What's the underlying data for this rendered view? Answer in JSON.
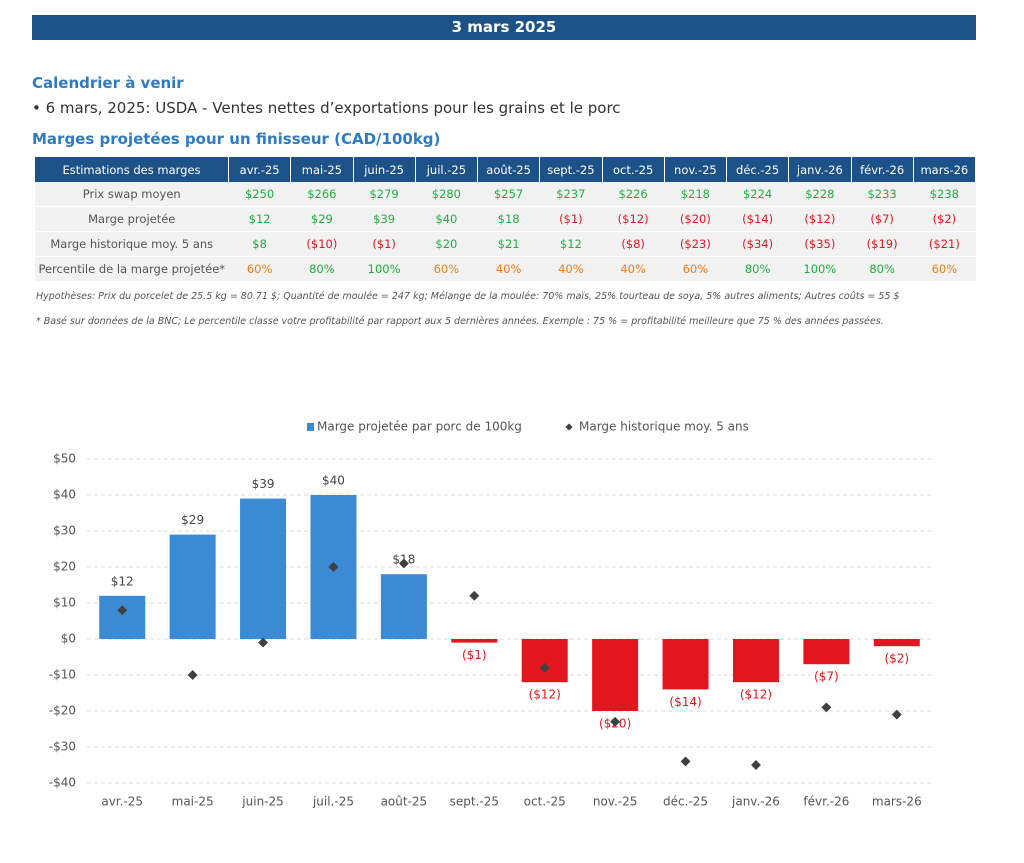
{
  "header": {
    "date": "3 mars 2025"
  },
  "calendar": {
    "title": "Calendrier à venir",
    "items": [
      "• 6 mars, 2025: USDA - Ventes nettes d’exportations pour les grains et le porc"
    ]
  },
  "margins_title": "Marges projetées pour un finisseur (CAD/100kg)",
  "table": {
    "header": [
      "Estimations des marges",
      "avr.-25",
      "mai-25",
      "juin-25",
      "juil.-25",
      "août-25",
      "sept.-25",
      "oct.-25",
      "nov.-25",
      "déc.-25",
      "janv.-26",
      "févr.-26",
      "mars-26"
    ],
    "rows": [
      [
        "Prix swap moyen",
        "$250",
        "$266",
        "$279",
        "$280",
        "$257",
        "$237",
        "$226",
        "$218",
        "$224",
        "$228",
        "$233",
        "$238"
      ],
      [
        "Marge projetée",
        "$12",
        "$29",
        "$39",
        "$40",
        "$18",
        "($1)",
        "($12)",
        "($20)",
        "($14)",
        "($12)",
        "($7)",
        "($2)"
      ],
      [
        "Marge historique moy. 5 ans",
        "$8",
        "($10)",
        "($1)",
        "$20",
        "$21",
        "$12",
        "($8)",
        "($23)",
        "($34)",
        "($35)",
        "($19)",
        "($21)"
      ],
      [
        "Percentile de la marge projetée*",
        "60%",
        "80%",
        "100%",
        "60%",
        "40%",
        "40%",
        "40%",
        "60%",
        "80%",
        "100%",
        "80%",
        "60%"
      ]
    ]
  },
  "notes": [
    "Hypothèses: Prix du porcelet de 25.5 kg = 80.71 $; Quantité de moulée = 247 kg; Mélange de la moulée: 70% maïs, 25% tourteau de soya, 5% autres aliments; Autres coûts = 55 $",
    "* Basé sur données de la BNC; Le percentile classe votre profitabilité par rapport aux 5 dernières années. Exemple : 75 % = profitabilité meilleure que 75 % des années passées."
  ],
  "chart_data": {
    "type": "bar",
    "categories": [
      "avr.-25",
      "mai-25",
      "juin-25",
      "juil.-25",
      "août-25",
      "sept.-25",
      "oct.-25",
      "nov.-25",
      "déc.-25",
      "janv.-26",
      "févr.-26",
      "mars-26"
    ],
    "series": [
      {
        "name": "Marge projetée par porc de 100kg",
        "type": "bar",
        "color": "#3b8bd4",
        "negative_color": "#e3161f",
        "values": [
          12,
          29,
          39,
          40,
          18,
          -1,
          -12,
          -20,
          -14,
          -12,
          -7,
          -2
        ],
        "value_labels": [
          "$12",
          "$29",
          "$39",
          "$40",
          "$18",
          "($1)",
          "($12)",
          "($20)",
          "($14)",
          "($12)",
          "($7)",
          "($2)"
        ]
      },
      {
        "name": "Marge historique moy. 5 ans",
        "type": "scatter",
        "color": "#404040",
        "values": [
          8,
          -10,
          -1,
          20,
          21,
          12,
          -8,
          -23,
          -34,
          -35,
          -19,
          -21
        ]
      }
    ],
    "ylim": [
      -40,
      50
    ],
    "yticks": [
      {
        "value": -40,
        "label": "-$40"
      },
      {
        "value": -30,
        "label": "-$30"
      },
      {
        "value": -20,
        "label": "-$20"
      },
      {
        "value": -10,
        "label": "-$10"
      },
      {
        "value": 0,
        "label": "$0"
      },
      {
        "value": 10,
        "label": "$10"
      },
      {
        "value": 20,
        "label": "$20"
      },
      {
        "value": 30,
        "label": "$30"
      },
      {
        "value": 40,
        "label": "$40"
      },
      {
        "value": 50,
        "label": "$50"
      }
    ],
    "grid": true,
    "legend": "top"
  }
}
